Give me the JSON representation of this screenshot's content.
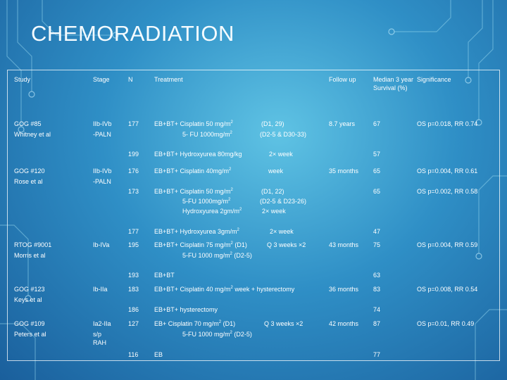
{
  "slide": {
    "title": "CHEMORADIATION"
  },
  "table": {
    "headers": {
      "study": "Study",
      "stage": "Stage",
      "n": "N",
      "treatment": "Treatment",
      "follow_up": "Follow up",
      "median": "Median 3 year Survival (%)",
      "significance": "Significance"
    },
    "cells": {
      "gog85_study": "GOG #85",
      "gog85_author": "Whitney et al",
      "gog85_stage1": "IIb-IVb",
      "gog85_stage2": "-PALN",
      "gog85_n1": "177",
      "gog85_tx1": "EB+BT+ Cisplatin 50 mg/m",
      "gog85_sched1": "(D1, 29)",
      "gog85_tx2": "5- FU 1000mg/m",
      "gog85_sched2": "(D2-5 & D30-33)",
      "gog85_follow": "8.7 years",
      "gog85_med1": "67",
      "gog85_sig1": "OS p=0.018, RR 0.74",
      "gog85_n2": "199",
      "gog85_tx3": "EB+BT+ Hydroxyurea 80mg/kg",
      "gog85_sched3": "2× week",
      "gog85_med2": "57",
      "gog120_study": "GOG #120",
      "gog120_author": "Rose et al",
      "gog120_stage1": "IIb-IVb",
      "gog120_stage2": "-PALN",
      "gog120_n1": "176",
      "gog120_tx1": "EB+BT+ Cisplatin 40mg/m",
      "gog120_sched1": "week",
      "gog120_follow": "35 months",
      "gog120_med1": "65",
      "gog120_sig1": "OS p=0.004, RR 0.61",
      "gog120_n2": "173",
      "gog120_tx2": "EB+BT+ Cisplatin 50 mg/m",
      "gog120_sched2": "(D1, 22)",
      "gog120_tx3": "5-FU 1000mg/m",
      "gog120_sched3": "(D2-5 & D23-26)",
      "gog120_tx4": "Hydroxyurea 2gm/m",
      "gog120_sched4": "2× week",
      "gog120_med2": "65",
      "gog120_sig2": "OS p=0.002, RR 0.58",
      "gog120_n3": "177",
      "gog120_tx5": "EB+BT+ Hydroxyurea 3gm/m",
      "gog120_sched5": "2× week",
      "gog120_med3": "47",
      "rtog_study": "RTOG #9001",
      "rtog_author": "Morris et al",
      "rtog_stage": "Ib-IVa",
      "rtog_n1": "195",
      "rtog_tx1": "EB+BT+ Cisplatin 75 mg/m",
      "rtog_tx1b": "(D1)",
      "rtog_sched1": "Q 3 weeks ×2",
      "rtog_tx2": "5-FU 1000 mg/m",
      "rtog_tx2b": "(D2-5)",
      "rtog_follow": "43 months",
      "rtog_med1": "75",
      "rtog_sig": "OS p=0.004, RR 0.59",
      "rtog_n2": "193",
      "rtog_tx3": "EB+BT",
      "rtog_med2": "63",
      "gog123_study": "GOG #123",
      "gog123_author": "Keys et al",
      "gog123_stage": "Ib-IIa",
      "gog123_n1": "183",
      "gog123_tx1": "EB+BT+ Cisplatin 40 mg/m",
      "gog123_tx1b": "week + hysterectomy",
      "gog123_follow": "36 months",
      "gog123_med1": "83",
      "gog123_sig": "OS p=0.008, RR 0.54",
      "gog123_n2": "186",
      "gog123_tx2": "EB+BT+ hysterectomy",
      "gog123_med2": "74",
      "gog109_study": "GOG #109",
      "gog109_author": "Peters et al",
      "gog109_stage1": "Ia2-IIa",
      "gog109_stage2": "s/p",
      "gog109_stage3": "RAH",
      "gog109_n1": "127",
      "gog109_tx1": "EB+ Cisplatin 70 mg/m",
      "gog109_tx1b": "(D1)",
      "gog109_sched1": "Q 3 weeks ×2",
      "gog109_tx2": "5-FU 1000 mg/m",
      "gog109_tx2b": "(D2-5)",
      "gog109_follow": "42 months",
      "gog109_med1": "87",
      "gog109_sig": "OS p=0.01, RR 0.49",
      "gog109_n2": "116",
      "gog109_tx3": "EB",
      "gog109_med2": "77"
    },
    "superscript": "2"
  }
}
